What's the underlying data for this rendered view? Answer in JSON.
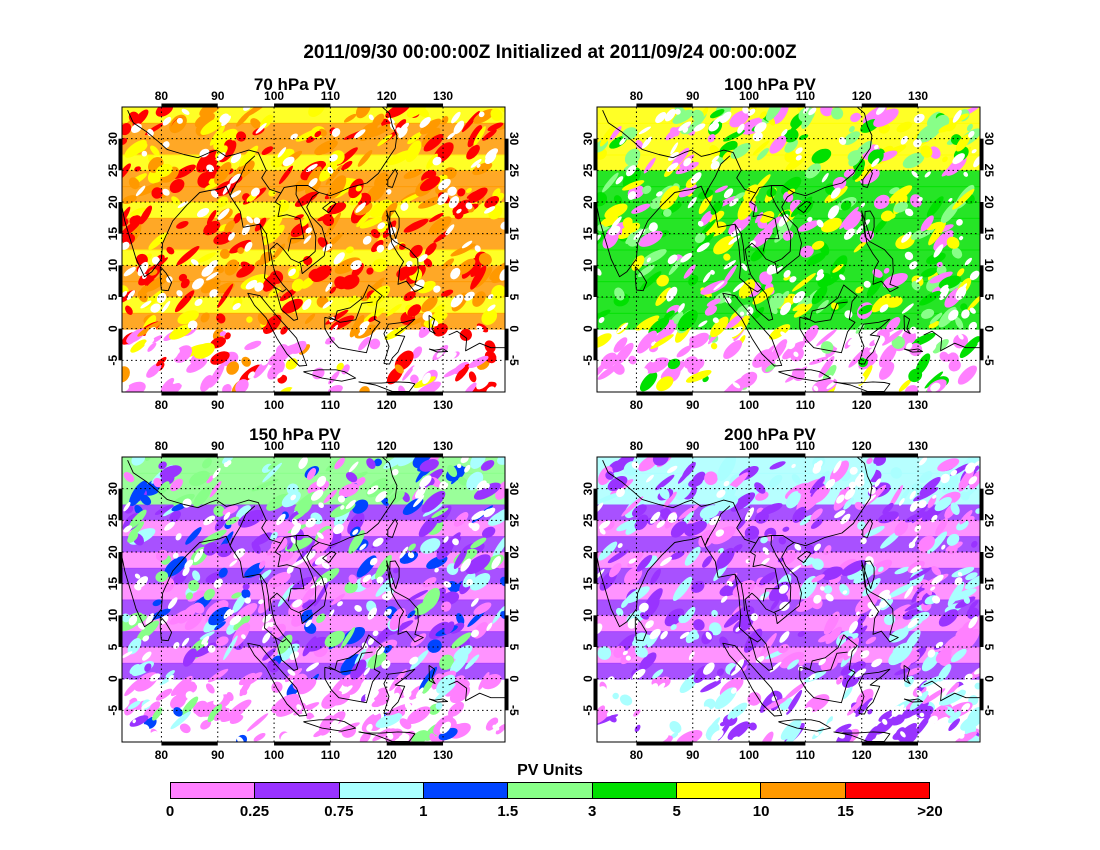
{
  "title": "2011/09/30 00:00:00Z Initialized at 2011/09/24 00:00:00Z",
  "map": {
    "lon_range": [
      73,
      141
    ],
    "lat_range": [
      -10,
      35
    ],
    "lon_ticks": [
      80,
      90,
      100,
      110,
      120,
      130
    ],
    "lat_ticks": [
      30,
      25,
      20,
      15,
      10,
      5,
      0,
      -5
    ],
    "grid": "dotted"
  },
  "panels": [
    {
      "id": "p70",
      "title": "70 hPa PV",
      "dominant_categories": [
        "10-15",
        "5-10",
        "15-20",
        ">20"
      ]
    },
    {
      "id": "p100",
      "title": "100 hPa PV",
      "dominant_categories": [
        "3-5",
        "5-10",
        "1.5-3",
        "0-0.25"
      ]
    },
    {
      "id": "p150",
      "title": "150 hPa PV",
      "dominant_categories": [
        "0-0.25",
        "0.25-0.75",
        "0.75-1",
        "1-1.5",
        "1.5-3"
      ]
    },
    {
      "id": "p200",
      "title": "200 hPa PV",
      "dominant_categories": [
        "0-0.25",
        "0.25-0.75",
        "0.75-1"
      ]
    }
  ],
  "colorbar": {
    "title": "PV Units",
    "labels": [
      "0",
      "0.25",
      "0.75",
      "1",
      "1.5",
      "3",
      "5",
      "10",
      "15",
      ">20"
    ],
    "colors": [
      "#ff80ff",
      "#9933ff",
      "#aaffff",
      "#0044ff",
      "#88ff88",
      "#00e000",
      "#ffff00",
      "#ff9900",
      "#ff0000"
    ]
  }
}
